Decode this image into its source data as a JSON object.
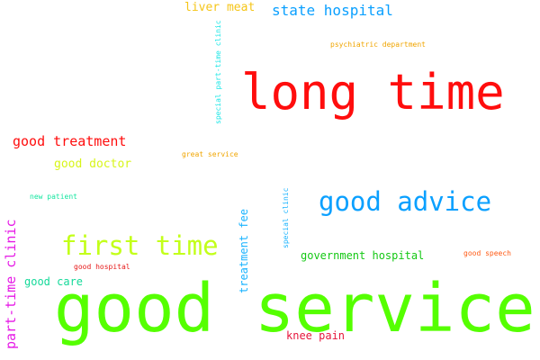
{
  "words": {
    "good_service": {
      "text": "good service",
      "color": "#55ff00"
    },
    "long_time": {
      "text": "long time",
      "color": "#ff0d0d"
    },
    "good_advice": {
      "text": "good advice",
      "color": "#0aa0ff"
    },
    "first_time": {
      "text": "first time",
      "color": "#c3ff1a"
    },
    "state_hospital": {
      "text": "state hospital",
      "color": "#0aa0ff"
    },
    "good_treatment": {
      "text": "good treatment",
      "color": "#ff0d0d"
    },
    "liver_meat": {
      "text": "liver meat",
      "color": "#f5c518"
    },
    "good_doctor": {
      "text": "good doctor",
      "color": "#d8f51a"
    },
    "part_time_clinic": {
      "text": "part-time clinic",
      "color": "#e619e6"
    },
    "treatment_fee": {
      "text": "treatment fee",
      "color": "#19b3ff"
    },
    "government_hospital": {
      "text": "government hospital",
      "color": "#14c814"
    },
    "good_care": {
      "text": "good care",
      "color": "#14d999"
    },
    "knee_pain": {
      "text": "knee pain",
      "color": "#e6153c"
    },
    "special_part_time_clinic": {
      "text": "special part-time clinic",
      "color": "#19e6e6"
    },
    "psychiatric_department": {
      "text": "psychiatric department",
      "color": "#f0a500"
    },
    "great_service": {
      "text": "great service",
      "color": "#f0a500"
    },
    "new_patient": {
      "text": "new patient",
      "color": "#14e6a0"
    },
    "good_hospital": {
      "text": "good hospital",
      "color": "#e61919"
    },
    "special_clinic": {
      "text": "special clinic",
      "color": "#19b3ff"
    },
    "good_speech": {
      "text": "good speech",
      "color": "#ff5a14"
    }
  }
}
